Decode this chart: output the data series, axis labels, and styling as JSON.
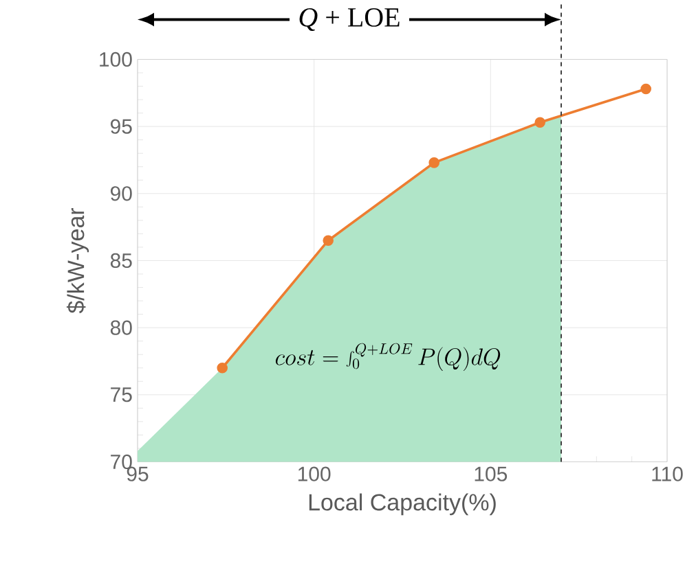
{
  "chart_data": {
    "type": "line",
    "xlabel": "Local Capacity(%)",
    "ylabel": "$/kW-year",
    "xlim": [
      95,
      110
    ],
    "ylim": [
      70,
      100
    ],
    "xticks": [
      95,
      100,
      105,
      110
    ],
    "yticks": [
      70,
      75,
      80,
      85,
      90,
      95,
      100
    ],
    "grid": true,
    "line_style": "solid",
    "series": [
      {
        "type": "area",
        "color": "#b0e5c8",
        "x": [
          95,
          97.4,
          100.4,
          103.4,
          106.4,
          107.0
        ],
        "values": [
          70.8,
          77.0,
          86.5,
          92.3,
          95.3,
          95.8
        ]
      },
      {
        "marker": "circle",
        "color": "#ed7d31",
        "x": [
          97.4,
          100.4,
          103.4,
          106.4,
          109.4
        ],
        "values": [
          77.0,
          86.5,
          92.3,
          95.3,
          97.8
        ]
      }
    ],
    "ref_lines": [
      {
        "axis": "x",
        "value": 107.0,
        "line_style": "dashed",
        "color": "#404040"
      }
    ],
    "annotations": [
      "cost = \\int_0^{Q+LOE} P(Q)dQ",
      "*Q* + LOE"
    ]
  }
}
